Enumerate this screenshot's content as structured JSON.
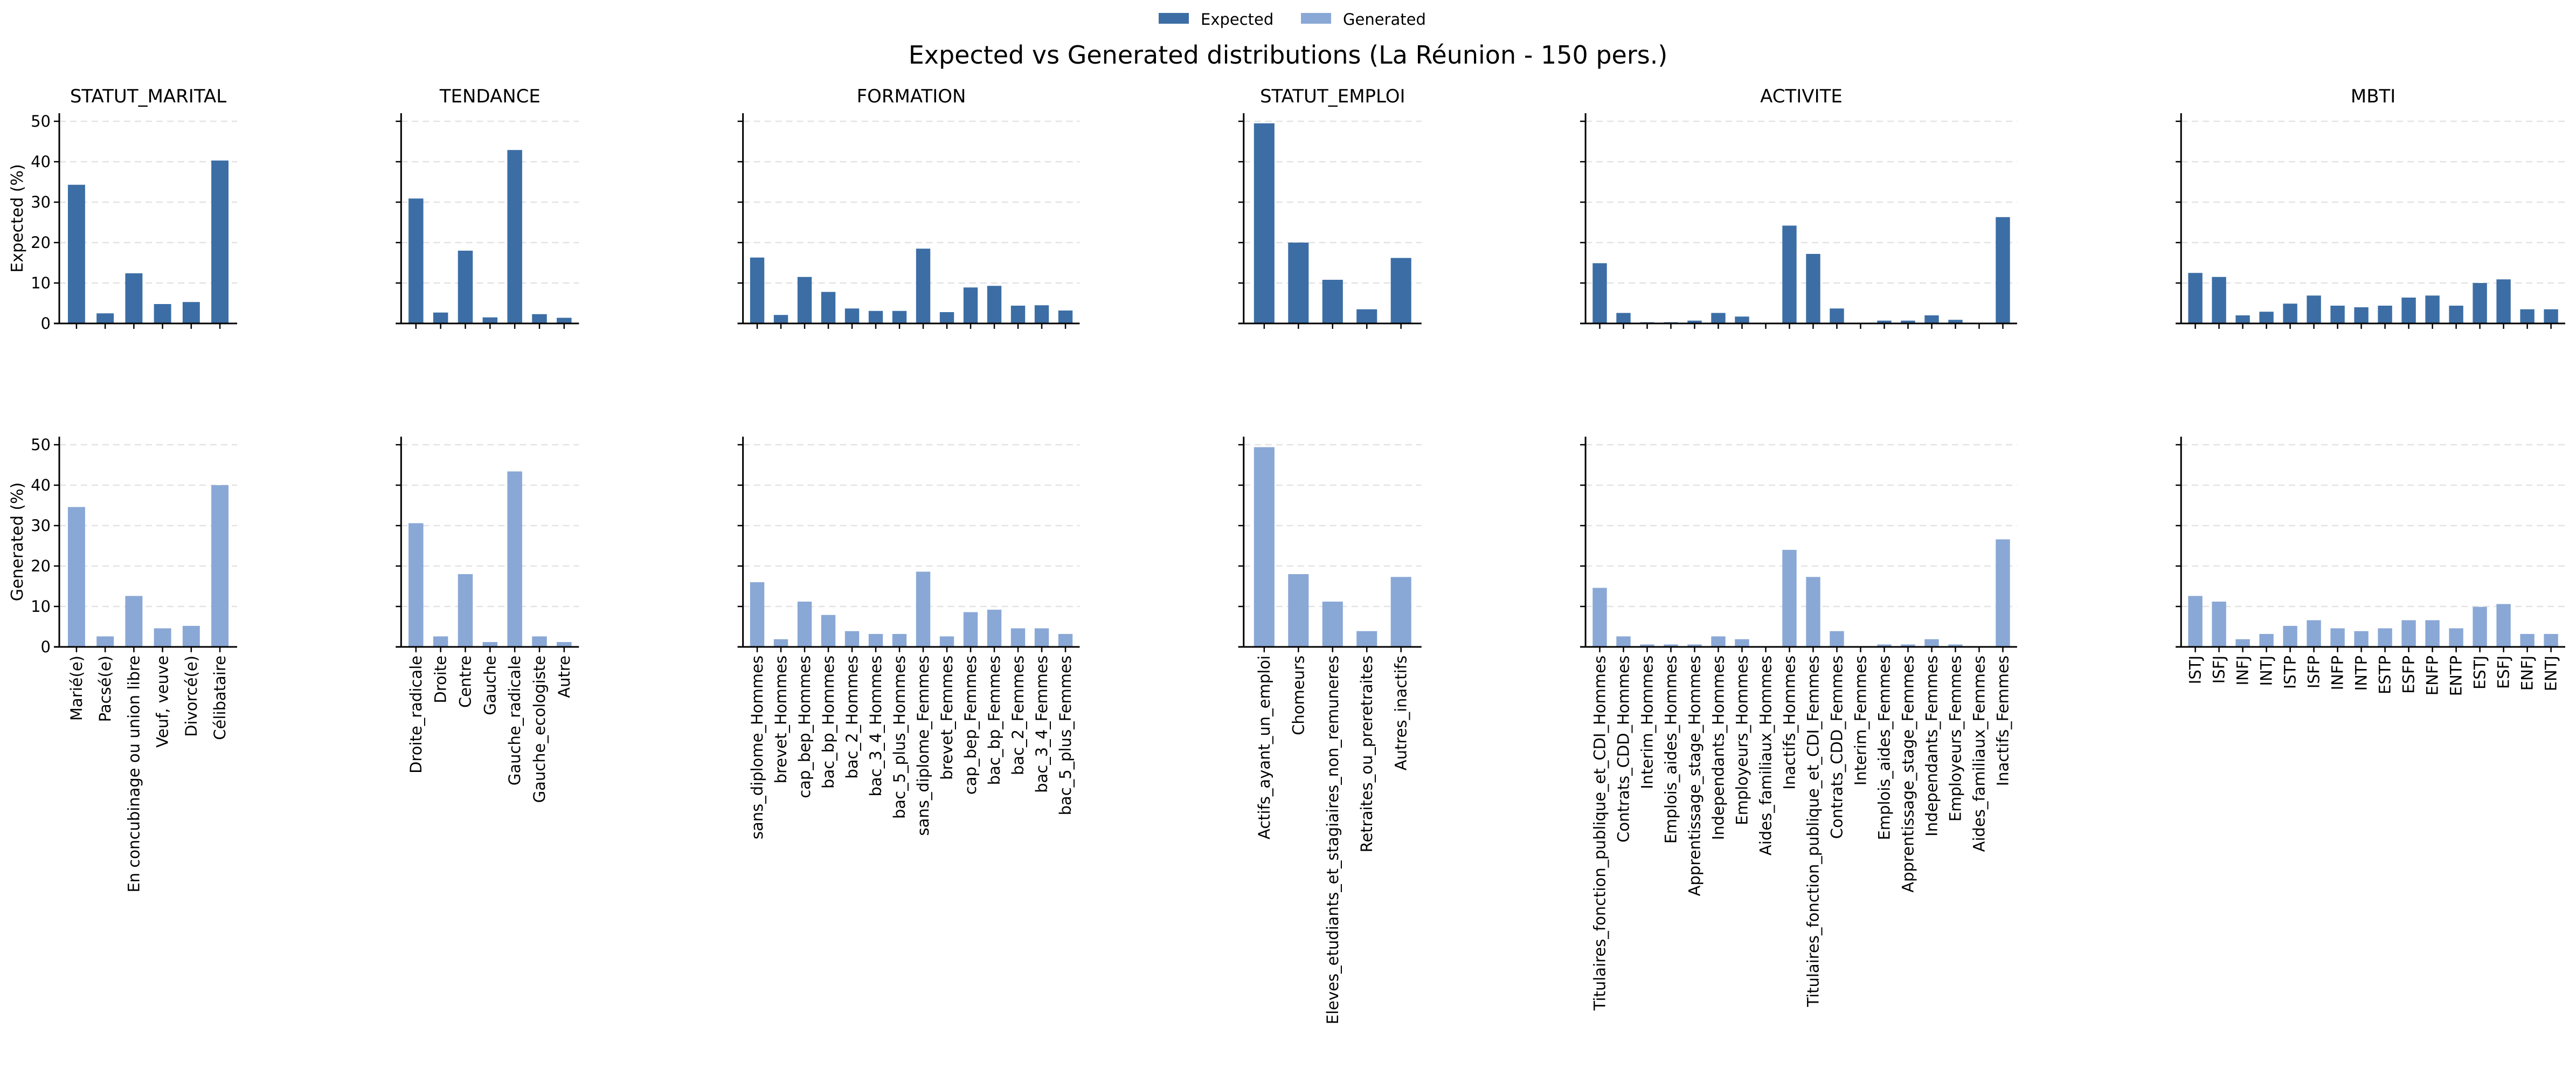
{
  "figure": {
    "title": "Expected vs Generated distributions (La Réunion - 150 pers.)",
    "legend": [
      "Expected",
      "Generated"
    ],
    "row_labels": [
      "Expected (%)",
      "Generated (%)"
    ],
    "colors": {
      "Expected": "#3c6ea5",
      "Generated": "#8aa8d6",
      "grid": "#e3e3e3"
    }
  },
  "chart_data": [
    {
      "type": "bar",
      "title": "STATUT_MARITAL",
      "categories": [
        "Marié(e)",
        "Pacsé(e)",
        "En concubinage ou union libre",
        "Veuf, veuve",
        "Divorcé(e)",
        "Célibataire"
      ],
      "series": [
        {
          "name": "Expected",
          "values": [
            34.3,
            2.5,
            12.4,
            4.8,
            5.3,
            40.3
          ]
        },
        {
          "name": "Generated",
          "values": [
            34.6,
            2.6,
            12.6,
            4.6,
            5.2,
            40.0
          ]
        }
      ],
      "ylim": [
        0,
        52
      ],
      "yticks": [
        "0",
        "10",
        "20",
        "30",
        "40",
        "50"
      ],
      "grid": true
    },
    {
      "type": "bar",
      "title": "TENDANCE",
      "categories": [
        "Droite_radicale",
        "Droite",
        "Centre",
        "Gauche",
        "Gauche_radicale",
        "Gauche_ecologiste",
        "Autre"
      ],
      "series": [
        {
          "name": "Expected",
          "values": [
            30.9,
            2.7,
            18.0,
            1.5,
            42.9,
            2.3,
            1.4
          ]
        },
        {
          "name": "Generated",
          "values": [
            30.6,
            2.6,
            18.0,
            1.2,
            43.4,
            2.6,
            1.2
          ]
        }
      ],
      "ylim": [
        0,
        52
      ],
      "grid": true
    },
    {
      "type": "bar",
      "title": "FORMATION",
      "categories": [
        "sans_diplome_Hommes",
        "brevet_Hommes",
        "cap_bep_Hommes",
        "bac_bp_Hommes",
        "bac_2_Hommes",
        "bac_3_4_Hommes",
        "bac_5_plus_Hommes",
        "sans_diplome_Femmes",
        "brevet_Femmes",
        "cap_bep_Femmes",
        "bac_bp_Femmes",
        "bac_2_Femmes",
        "bac_3_4_Femmes",
        "bac_5_plus_Femmes"
      ],
      "series": [
        {
          "name": "Expected",
          "values": [
            16.3,
            2.1,
            11.5,
            7.8,
            3.7,
            3.1,
            3.1,
            18.5,
            2.8,
            8.9,
            9.3,
            4.4,
            4.5,
            3.2
          ]
        },
        {
          "name": "Generated",
          "values": [
            16.0,
            1.9,
            11.2,
            7.9,
            3.9,
            3.2,
            3.2,
            18.6,
            2.6,
            8.6,
            9.2,
            4.6,
            4.6,
            3.2
          ]
        }
      ],
      "ylim": [
        0,
        52
      ],
      "grid": true
    },
    {
      "type": "bar",
      "title": "STATUT_EMPLOI",
      "categories": [
        "Actifs_ayant_un_emploi",
        "Chomeurs",
        "Eleves_etudiants_et_stagiaires_non_remuneres",
        "Retraites_ou_preretraites",
        "Autres_inactifs"
      ],
      "series": [
        {
          "name": "Expected",
          "values": [
            49.5,
            20.0,
            10.8,
            3.5,
            16.2
          ]
        },
        {
          "name": "Generated",
          "values": [
            49.4,
            18.0,
            11.2,
            3.9,
            17.3
          ]
        }
      ],
      "ylim": [
        0,
        52
      ],
      "grid": true
    },
    {
      "type": "bar",
      "title": "ACTIVITE",
      "categories": [
        "Titulaires_fonction_publique_et_CDI_Hommes",
        "Contrats_CDD_Hommes",
        "Interim_Hommes",
        "Emplois_aides_Hommes",
        "Apprentissage_stage_Hommes",
        "Independants_Hommes",
        "Employeurs_Hommes",
        "Aides_familiaux_Hommes",
        "Inactifs_Hommes",
        "Titulaires_fonction_publique_et_CDI_Femmes",
        "Contrats_CDD_Femmes",
        "Interim_Femmes",
        "Emplois_aides_Femmes",
        "Apprentissage_stage_Femmes",
        "Independants_Femmes",
        "Employeurs_Femmes",
        "Aides_familiaux_Femmes",
        "Inactifs_Femmes"
      ],
      "series": [
        {
          "name": "Expected",
          "values": [
            14.9,
            2.6,
            0.3,
            0.3,
            0.7,
            2.6,
            1.7,
            0,
            24.2,
            17.2,
            3.7,
            0,
            0.7,
            0.7,
            2.0,
            0.9,
            0,
            26.3
          ]
        },
        {
          "name": "Generated",
          "values": [
            14.6,
            2.6,
            0.6,
            0.6,
            0.6,
            2.6,
            1.9,
            0,
            24.0,
            17.3,
            3.9,
            0,
            0.6,
            0.6,
            1.9,
            0.6,
            0,
            26.6
          ]
        }
      ],
      "ylim": [
        0,
        52
      ],
      "grid": true
    },
    {
      "type": "bar",
      "title": "MBTI",
      "categories": [
        "ISTJ",
        "ISFJ",
        "INFJ",
        "INTJ",
        "ISTP",
        "ISFP",
        "INFP",
        "INTP",
        "ESTP",
        "ESFP",
        "ENFP",
        "ENTP",
        "ESTJ",
        "ESFJ",
        "ENFJ",
        "ENTJ"
      ],
      "series": [
        {
          "name": "Expected",
          "values": [
            12.5,
            11.5,
            2.0,
            2.9,
            4.9,
            6.9,
            4.4,
            4.0,
            4.4,
            6.4,
            6.9,
            4.4,
            10.0,
            10.9,
            3.5,
            3.5
          ]
        },
        {
          "name": "Generated",
          "values": [
            12.6,
            11.2,
            1.9,
            3.2,
            5.2,
            6.6,
            4.6,
            3.9,
            4.6,
            6.6,
            6.6,
            4.6,
            9.9,
            10.6,
            3.2,
            3.2
          ]
        }
      ],
      "ylim": [
        0,
        52
      ],
      "grid": true
    }
  ]
}
